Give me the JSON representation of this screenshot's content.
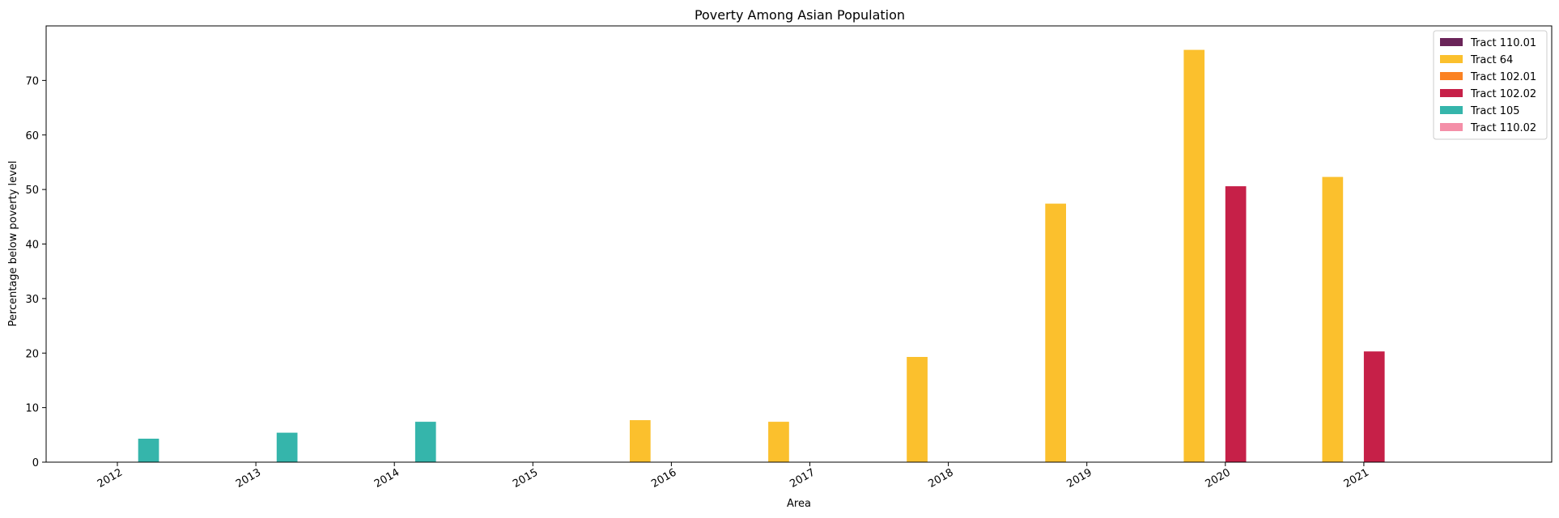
{
  "chart_data": {
    "type": "bar",
    "title": "Poverty Among Asian Population",
    "xlabel": "Area",
    "ylabel": "Percentage below poverty level",
    "categories": [
      "2012",
      "2013",
      "2014",
      "2015",
      "2016",
      "2017",
      "2018",
      "2019",
      "2020",
      "2021"
    ],
    "ylim": [
      0,
      80
    ],
    "yticks": [
      0,
      10,
      20,
      30,
      40,
      50,
      60,
      70
    ],
    "grid": false,
    "legend_position": "top-right",
    "series": [
      {
        "name": "Tract 110.01",
        "color": "#6a2459",
        "values": [
          0,
          0,
          0,
          0,
          0,
          0,
          0,
          0,
          0,
          0
        ]
      },
      {
        "name": "Tract 64",
        "color": "#fbc02d",
        "values": [
          0,
          0,
          0,
          0,
          7.7,
          7.4,
          19.3,
          47.4,
          75.6,
          52.3
        ]
      },
      {
        "name": "Tract 102.01",
        "color": "#fb8222",
        "values": [
          0,
          0,
          0,
          0,
          0,
          0,
          0,
          0,
          0,
          0
        ]
      },
      {
        "name": "Tract 102.02",
        "color": "#c62048",
        "values": [
          0,
          0,
          0,
          0,
          0,
          0,
          0,
          0,
          50.6,
          20.3
        ]
      },
      {
        "name": "Tract 105",
        "color": "#35b5ab",
        "values": [
          4.3,
          5.4,
          7.4,
          0,
          0,
          0,
          0,
          0,
          0,
          0
        ]
      },
      {
        "name": "Tract 110.02",
        "color": "#f48fa8",
        "values": [
          0,
          0,
          0,
          0,
          0,
          0,
          0,
          0,
          0,
          0
        ]
      }
    ]
  }
}
